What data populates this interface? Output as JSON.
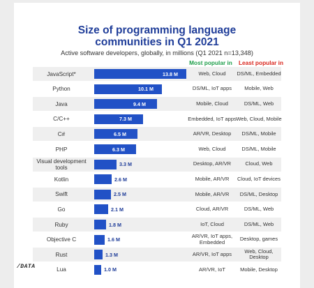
{
  "chart_data": {
    "type": "bar",
    "orientation": "horizontal",
    "title_lines": [
      "Size of programming language",
      "communities in Q1 2021"
    ],
    "subtitle": "Active software developers, globally, in millions (Q1 2021 n=13,348)",
    "column_headers": {
      "most_popular": "Most popular in",
      "least_popular": "Least popular in"
    },
    "categories": [
      "JavaScript*",
      "Python",
      "Java",
      "C/C++",
      "C#",
      "PHP",
      "Visual development tools",
      "Kotlin",
      "Swift",
      "Go",
      "Ruby",
      "Objective C",
      "Rust",
      "Lua"
    ],
    "values": [
      13.8,
      10.1,
      9.4,
      7.3,
      6.5,
      6.3,
      3.3,
      2.6,
      2.5,
      2.1,
      1.8,
      1.6,
      1.3,
      1.0
    ],
    "value_labels": [
      "13.8 M",
      "10.1 M",
      "9.4 M",
      "7.3 M",
      "6.5 M",
      "6.3 M",
      "3.3 M",
      "2.6 M",
      "2.5 M",
      "2.1 M",
      "1.8 M",
      "1.6 M",
      "1.3 M",
      "1.0 M"
    ],
    "most_popular_in": [
      "Web, Cloud",
      "DS/ML, IoT apps",
      "Mobile, Cloud",
      "Embedded, IoT apps",
      "AR/VR, Desktop",
      "Web, Cloud",
      "Desktop, AR/VR",
      "Mobile, AR/VR",
      "Mobile, AR/VR",
      "Cloud, AR/VR",
      "IoT, Cloud",
      "AR/VR, IoT apps, Embedded",
      "AR/VR, IoT apps",
      "AR/VR, IoT"
    ],
    "least_popular_in": [
      "DS/ML, Embedded",
      "Mobile, Web",
      "DS/ML, Web",
      "Web, Cloud, Mobile",
      "DS/ML, Mobile",
      "DS/ML, Mobile",
      "Cloud, Web",
      "Cloud, IoT devices",
      "DS/ML, Desktop",
      "DS/ML, Web",
      "DS/ML, Web",
      "Desktop, games",
      "Web, Cloud, Desktop",
      "Mobile, Desktop"
    ],
    "xlim": [
      0,
      13.8
    ],
    "grid": false,
    "legend": "none",
    "bar_color": "#2151c6",
    "row_shading_color": "#efefef"
  },
  "colors": {
    "title": "#1f3d99",
    "most_popular_header": "#1e9e4a",
    "least_popular_header": "#d9251c"
  },
  "logo": {
    "text": "/DATA"
  }
}
